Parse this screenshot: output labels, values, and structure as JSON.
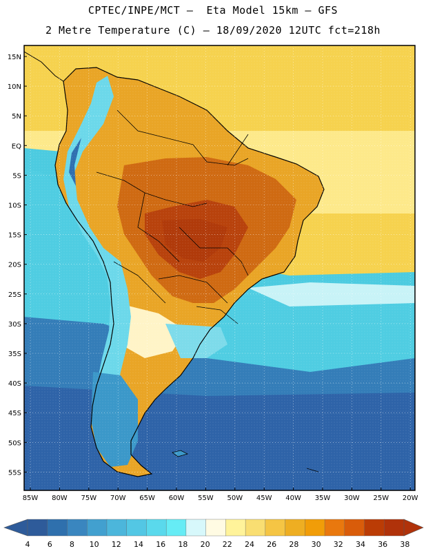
{
  "header": {
    "title_line1": "CPTEC/INPE/MCT –  Eta Model 15km – GFS",
    "title_line2": "2 Metre Temperature (C) – 18/09/2020 12UTC fct=218h"
  },
  "map": {
    "lat_labels": [
      "15N",
      "10N",
      "5N",
      "EQ",
      "5S",
      "10S",
      "15S",
      "20S",
      "25S",
      "30S",
      "35S",
      "40S",
      "45S",
      "50S",
      "55S"
    ],
    "lon_labels": [
      "85W",
      "80W",
      "75W",
      "70W",
      "65W",
      "60W",
      "55W",
      "50W",
      "45W",
      "40W",
      "35W",
      "30W",
      "25W",
      "20W"
    ],
    "background_colors": {
      "tropics_ocean": "#f6d24e",
      "subtropic_ocean": "#fde98a",
      "mid_ocean": "#4ccbe0",
      "south_ocean": "#2f6fb0",
      "continent_warm": "#e9a526",
      "continent_hot": "#cf6a12",
      "continent_core": "#b8420c",
      "andes": "#6cd8ea",
      "patagonia": "#3b98c9"
    }
  },
  "colorbar": {
    "labels": [
      "4",
      "6",
      "8",
      "10",
      "12",
      "14",
      "16",
      "18",
      "20",
      "22",
      "24",
      "26",
      "28",
      "30",
      "32",
      "34",
      "36",
      "38"
    ],
    "colors": [
      "#2e5b9a",
      "#2f70ad",
      "#3a86bf",
      "#42a0cf",
      "#4cb6db",
      "#53c7e4",
      "#5ad9ec",
      "#66ecf5",
      "#d7f8fb",
      "#fffbe3",
      "#fff39a",
      "#f9de72",
      "#f5c544",
      "#eeae22",
      "#f19d08",
      "#e9780e",
      "#d95c0a",
      "#bb3c05",
      "#b0320a"
    ]
  }
}
